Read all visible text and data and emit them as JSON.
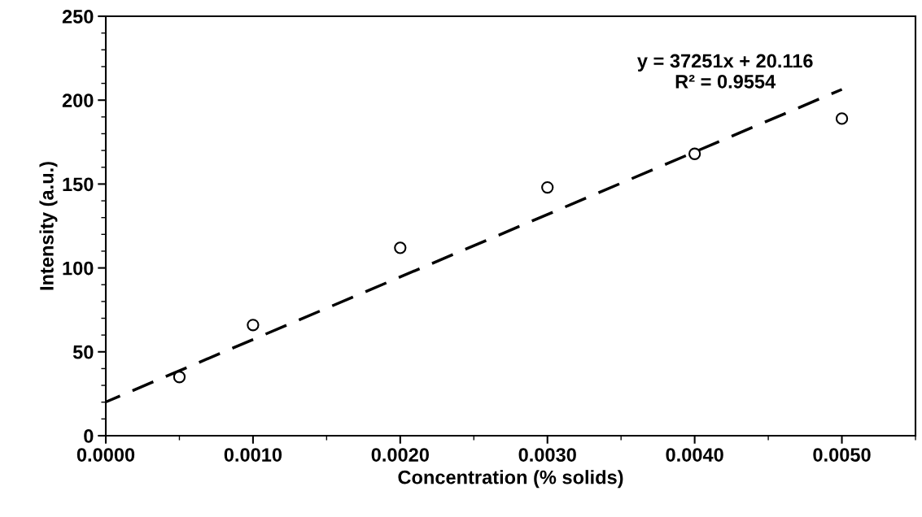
{
  "chart_data": {
    "type": "scatter",
    "xlabel": "Concentration (% solids)",
    "ylabel": "Intensity (a.u.)",
    "xlim": [
      0,
      0.0055
    ],
    "ylim": [
      0,
      250
    ],
    "xticks": [
      {
        "value": 0,
        "label": "0.0000"
      },
      {
        "value": 0.001,
        "label": "0.0010"
      },
      {
        "value": 0.002,
        "label": "0.0020"
      },
      {
        "value": 0.003,
        "label": "0.0030"
      },
      {
        "value": 0.004,
        "label": "0.0040"
      },
      {
        "value": 0.005,
        "label": "0.0050"
      }
    ],
    "yticks": [
      0,
      50,
      100,
      150,
      200,
      250
    ],
    "grid": false,
    "legend": false,
    "series": [
      {
        "color": "#000000",
        "marker": "circle",
        "x": [
          0.0005,
          0.001,
          0.002,
          0.003,
          0.004,
          0.005
        ],
        "values": [
          35,
          66,
          112,
          148,
          168,
          189
        ]
      },
      {
        "type": "line",
        "color": "#000000",
        "marker": "none",
        "line_style": "dashed",
        "x": [
          0,
          0.005
        ],
        "values": [
          20.1,
          206.4
        ]
      }
    ],
    "annotations": [
      "y = 37251x + 20.116\nR² = 0.9554"
    ]
  }
}
